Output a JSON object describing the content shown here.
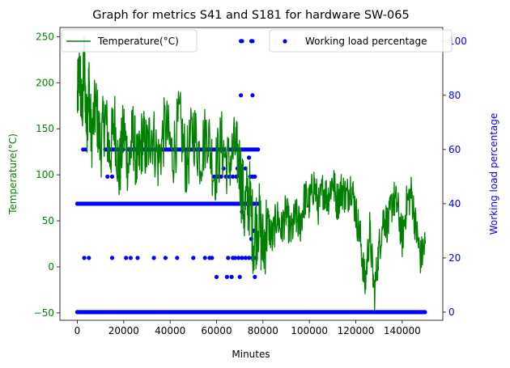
{
  "chart_data": {
    "type": "line",
    "title": "Graph for metrics S41 and S181 for hardware SW-065",
    "xlabel": "Minutes",
    "xlim": [
      -7500,
      157500
    ],
    "xticks": [
      0,
      20000,
      40000,
      60000,
      80000,
      100000,
      120000,
      140000
    ],
    "xtick_labels": [
      "0",
      "20000",
      "40000",
      "60000",
      "80000",
      "100000",
      "120000",
      "140000"
    ],
    "left_axis": {
      "label": "Temperature(°C)",
      "color": "#008000",
      "ylim": [
        -58,
        260
      ],
      "ticks": [
        -50,
        0,
        50,
        100,
        150,
        200,
        250
      ],
      "tick_labels": [
        "−50",
        "0",
        "50",
        "100",
        "150",
        "200",
        "250"
      ]
    },
    "right_axis": {
      "label": "Working load percentage",
      "color": "#0000ff",
      "ylim": [
        -3,
        105
      ],
      "ticks": [
        0,
        20,
        40,
        60,
        80,
        100
      ],
      "tick_labels": [
        "0",
        "20",
        "40",
        "60",
        "80",
        "100"
      ]
    },
    "series": [
      {
        "name": "Temperature(°C)",
        "type": "line",
        "axis": "left",
        "color": "#008000",
        "x": [
          0,
          1000,
          2000,
          3000,
          4000,
          5000,
          6000,
          8000,
          10000,
          12000,
          14000,
          16000,
          18000,
          20000,
          22000,
          24000,
          26000,
          28000,
          30000,
          32000,
          35000,
          38000,
          41000,
          44000,
          47000,
          50000,
          53000,
          56000,
          59000,
          62000,
          65000,
          68000,
          70000,
          72000,
          74000,
          76000,
          78000,
          80000,
          82000,
          84000,
          86000,
          88000,
          90000,
          92000,
          94000,
          96000,
          98000,
          100000,
          102000,
          104000,
          106000,
          108000,
          110000,
          112000,
          114000,
          116000,
          118000,
          120000,
          122000,
          124000,
          126000,
          128000,
          130000,
          132000,
          134000,
          136000,
          138000,
          140000,
          142000,
          144000,
          146000,
          148000,
          150000
        ],
        "y": [
          180,
          215,
          165,
          225,
          150,
          200,
          140,
          175,
          130,
          165,
          120,
          160,
          100,
          150,
          110,
          145,
          105,
          140,
          125,
          150,
          115,
          155,
          120,
          160,
          110,
          150,
          120,
          150,
          100,
          135,
          110,
          130,
          110,
          60,
          80,
          30,
          55,
          20,
          50,
          30,
          55,
          40,
          60,
          35,
          55,
          45,
          75,
          70,
          90,
          65,
          85,
          75,
          95,
          70,
          85,
          75,
          90,
          60,
          30,
          -20,
          40,
          -30,
          20,
          55,
          45,
          75,
          65,
          30,
          70,
          80,
          40,
          10,
          25
        ]
      },
      {
        "name": "Working load percentage",
        "type": "scatter",
        "axis": "right",
        "color": "#0000ff",
        "levels": [
          0,
          40,
          60
        ],
        "extra_points": [
          {
            "x": 2500,
            "y": 60
          },
          {
            "x": 3500,
            "y": 60
          },
          {
            "x": 3000,
            "y": 20
          },
          {
            "x": 5000,
            "y": 20
          },
          {
            "x": 15000,
            "y": 20
          },
          {
            "x": 21000,
            "y": 20
          },
          {
            "x": 23000,
            "y": 20
          },
          {
            "x": 26000,
            "y": 20
          },
          {
            "x": 33000,
            "y": 20
          },
          {
            "x": 38000,
            "y": 20
          },
          {
            "x": 43000,
            "y": 20
          },
          {
            "x": 50000,
            "y": 20
          },
          {
            "x": 55000,
            "y": 20
          },
          {
            "x": 57000,
            "y": 20
          },
          {
            "x": 58000,
            "y": 20
          },
          {
            "x": 65000,
            "y": 20
          },
          {
            "x": 67000,
            "y": 20
          },
          {
            "x": 68000,
            "y": 20
          },
          {
            "x": 69500,
            "y": 20
          },
          {
            "x": 71000,
            "y": 20
          },
          {
            "x": 72500,
            "y": 20
          },
          {
            "x": 74000,
            "y": 20
          },
          {
            "x": 75500,
            "y": 20
          },
          {
            "x": 77000,
            "y": 20
          },
          {
            "x": 13000,
            "y": 50
          },
          {
            "x": 15000,
            "y": 50
          },
          {
            "x": 18000,
            "y": 50
          },
          {
            "x": 59000,
            "y": 50
          },
          {
            "x": 60500,
            "y": 50
          },
          {
            "x": 62000,
            "y": 50
          },
          {
            "x": 64000,
            "y": 50
          },
          {
            "x": 65500,
            "y": 50
          },
          {
            "x": 67000,
            "y": 50
          },
          {
            "x": 68500,
            "y": 50
          },
          {
            "x": 70000,
            "y": 50
          },
          {
            "x": 74500,
            "y": 50
          },
          {
            "x": 75500,
            "y": 50
          },
          {
            "x": 76500,
            "y": 50
          },
          {
            "x": 60000,
            "y": 13
          },
          {
            "x": 64500,
            "y": 13
          },
          {
            "x": 66500,
            "y": 13
          },
          {
            "x": 70000,
            "y": 13
          },
          {
            "x": 76500,
            "y": 13
          },
          {
            "x": 63000,
            "y": 53
          },
          {
            "x": 69000,
            "y": 53
          },
          {
            "x": 72500,
            "y": 53
          },
          {
            "x": 74000,
            "y": 57
          },
          {
            "x": 70500,
            "y": 100
          },
          {
            "x": 71000,
            "y": 100
          },
          {
            "x": 75000,
            "y": 100
          },
          {
            "x": 75500,
            "y": 100
          },
          {
            "x": 70500,
            "y": 80
          },
          {
            "x": 75500,
            "y": 80
          },
          {
            "x": 71000,
            "y": 37
          },
          {
            "x": 76000,
            "y": 30
          },
          {
            "x": 75000,
            "y": 27
          }
        ]
      }
    ],
    "legends": [
      {
        "placement": "top-left",
        "label": "Temperature(°C)"
      },
      {
        "placement": "top-right",
        "label": "Working load percentage"
      }
    ]
  }
}
